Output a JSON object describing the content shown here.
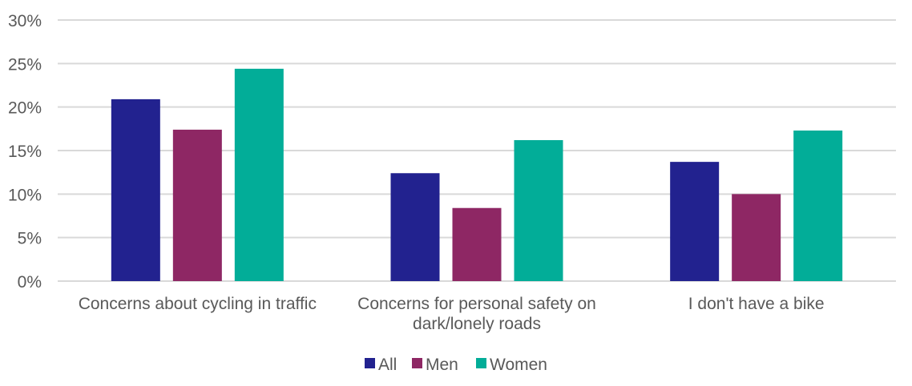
{
  "chart_data": {
    "type": "bar",
    "title": "",
    "xlabel": "",
    "ylabel": "",
    "ylim": [
      0,
      30
    ],
    "yticks": [
      "0%",
      "5%",
      "10%",
      "15%",
      "20%",
      "25%",
      "30%"
    ],
    "ytick_values": [
      0,
      5,
      10,
      15,
      20,
      25,
      30
    ],
    "grid": true,
    "legend_position": "bottom",
    "categories": [
      [
        "Concerns about cycling in traffic"
      ],
      [
        "Concerns for personal safety on",
        "dark/lonely roads"
      ],
      [
        "I don't have a bike"
      ]
    ],
    "series": [
      {
        "name": "All",
        "color": "#22228f",
        "values": [
          20.9,
          12.4,
          13.7
        ]
      },
      {
        "name": "Men",
        "color": "#8e2764",
        "values": [
          17.4,
          8.4,
          10.0
        ]
      },
      {
        "name": "Women",
        "color": "#02ad98",
        "values": [
          24.4,
          16.2,
          17.3
        ]
      }
    ]
  }
}
